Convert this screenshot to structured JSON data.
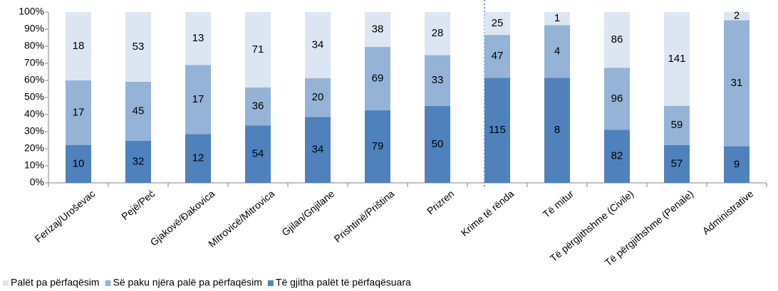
{
  "chart_data": {
    "type": "bar",
    "stack": "percent",
    "categories": [
      "Ferizaj/Uroševac",
      "Pejë/Peć",
      "Gjakovë/Đakovica",
      "Mitrovicë/Mitrovica",
      "Gjilan/Gnjilane",
      "Prishtinë/Priština",
      "Prizren",
      "Krime të rënda",
      "Të mitur",
      "Të përgjithshme (Civile)",
      "Të përgjithshme (Penale)",
      "Administrative"
    ],
    "series": [
      {
        "name": "Palët pa përfaqësim",
        "color": "#dce6f2",
        "values": [
          18,
          53,
          13,
          71,
          34,
          38,
          28,
          25,
          1,
          86,
          141,
          2
        ]
      },
      {
        "name": "Së paku njëra palë pa përfaqësim",
        "color": "#95b3d7",
        "values": [
          17,
          45,
          17,
          36,
          20,
          69,
          33,
          47,
          4,
          96,
          59,
          31
        ]
      },
      {
        "name": "Të gjitha palët të përfaqësuara",
        "color": "#4f81bd",
        "values": [
          10,
          32,
          12,
          54,
          34,
          79,
          50,
          115,
          8,
          82,
          57,
          9
        ]
      }
    ],
    "ylim": [
      0,
      100
    ],
    "yticks": [
      {
        "value": 0,
        "label": "0%"
      },
      {
        "value": 10,
        "label": "10%"
      },
      {
        "value": 20,
        "label": "20%"
      },
      {
        "value": 30,
        "label": "30%"
      },
      {
        "value": 40,
        "label": "40%"
      },
      {
        "value": 50,
        "label": "50%"
      },
      {
        "value": 60,
        "label": "60%"
      },
      {
        "value": 70,
        "label": "70%"
      },
      {
        "value": 80,
        "label": "80%"
      },
      {
        "value": 90,
        "label": "90%"
      },
      {
        "value": 100,
        "label": "100%"
      }
    ],
    "legend": "bottom"
  }
}
